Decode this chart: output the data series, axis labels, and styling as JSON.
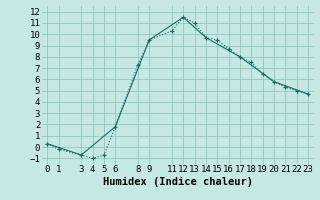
{
  "xlabel": "Humidex (Indice chaleur)",
  "bg_color": "#c5e8e5",
  "grid_color": "#8ec8c2",
  "line_color": "#1a6b65",
  "xlim": [
    -0.5,
    23.5
  ],
  "ylim": [
    -1.5,
    12.5
  ],
  "xticks": [
    0,
    1,
    3,
    4,
    5,
    6,
    8,
    9,
    11,
    12,
    13,
    14,
    15,
    16,
    17,
    18,
    19,
    20,
    21,
    22,
    23
  ],
  "yticks": [
    -1,
    0,
    1,
    2,
    3,
    4,
    5,
    6,
    7,
    8,
    9,
    10,
    11,
    12
  ],
  "curve1_x": [
    0,
    1,
    3,
    4,
    5,
    6,
    8,
    9,
    11,
    12,
    13,
    14,
    15,
    16,
    17,
    18,
    19,
    20,
    21,
    22,
    23
  ],
  "curve1_y": [
    0.3,
    -0.2,
    -0.7,
    -1.0,
    -0.7,
    1.8,
    7.3,
    9.5,
    10.3,
    11.5,
    11.0,
    9.7,
    9.5,
    8.7,
    8.0,
    7.5,
    6.5,
    5.8,
    5.3,
    5.0,
    4.7
  ],
  "curve2_x": [
    0,
    3,
    6,
    9,
    12,
    14,
    17,
    20,
    23
  ],
  "curve2_y": [
    0.3,
    -0.7,
    1.8,
    9.5,
    11.5,
    9.7,
    8.0,
    5.8,
    4.7
  ],
  "tick_fontsize": 6.5,
  "label_fontsize": 7.5
}
